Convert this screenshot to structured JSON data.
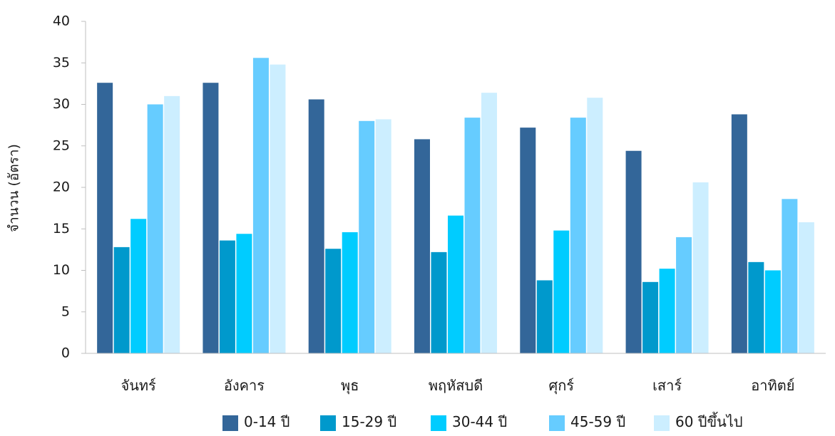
{
  "chart_data": {
    "type": "bar",
    "title": "",
    "xlabel": "",
    "ylabel": "จำนวน (อัตรา)",
    "ylim": [
      0,
      40
    ],
    "yticks": [
      0,
      5,
      10,
      15,
      20,
      25,
      30,
      35,
      40
    ],
    "grid": false,
    "legend_position": "bottom",
    "categories": [
      "จันทร์",
      "อังคาร",
      "พุธ",
      "พฤหัสบดี",
      "ศุกร์",
      "เสาร์",
      "อาทิตย์"
    ],
    "series": [
      {
        "name": "0-14 ปี",
        "color": "#336699",
        "values": [
          32.6,
          32.6,
          30.6,
          25.8,
          27.2,
          24.4,
          28.8
        ]
      },
      {
        "name": "15-29 ปี",
        "color": "#0099cc",
        "values": [
          12.8,
          13.6,
          12.6,
          12.2,
          8.8,
          8.6,
          11.0
        ]
      },
      {
        "name": "30-44 ปี",
        "color": "#00ccff",
        "values": [
          16.2,
          14.4,
          14.6,
          16.6,
          14.8,
          10.2,
          10.0
        ]
      },
      {
        "name": "45-59 ปี",
        "color": "#66ccff",
        "values": [
          30.0,
          35.6,
          28.0,
          28.4,
          28.4,
          14.0,
          18.6
        ]
      },
      {
        "name": "60 ปีขึ้นไป",
        "color": "#cceeff",
        "values": [
          31.0,
          34.8,
          28.2,
          31.4,
          30.8,
          20.6,
          15.8
        ]
      }
    ]
  }
}
